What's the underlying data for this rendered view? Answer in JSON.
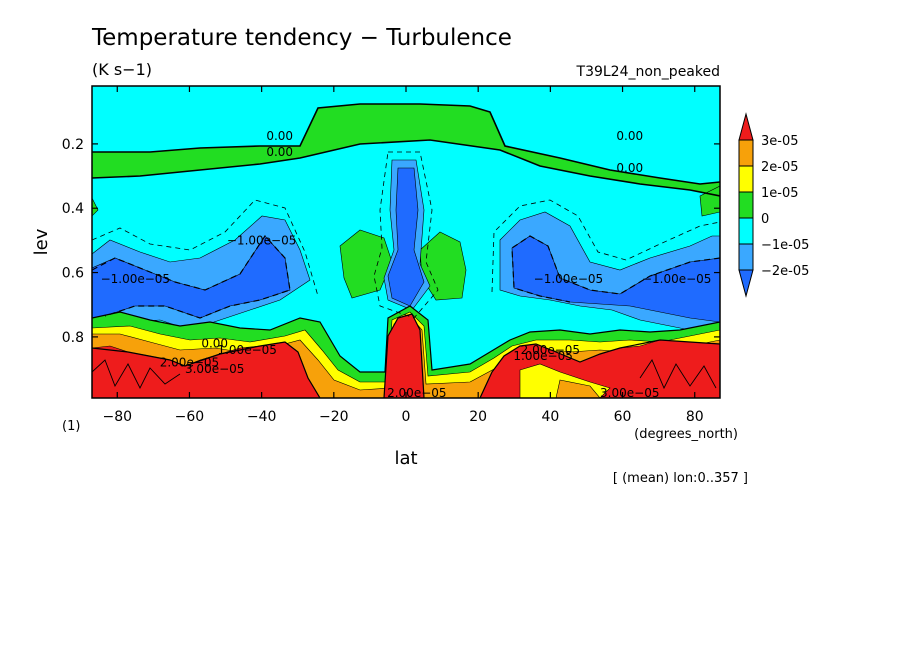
{
  "title": "Temperature tendency − Turbulence",
  "units": "(K s−1)",
  "run_name": "T39L24_non_peaked",
  "footnote_index": "(1)",
  "mean_note": "[ (mean) lon:0..357 ]",
  "colors": {
    "red": "#ee1c1c",
    "orange": "#f7a10a",
    "yellow": "#ffff00",
    "green": "#22dd22",
    "cyan": "#00ffff",
    "light_blue": "#3aa8ff",
    "blue": "#1f6bff"
  },
  "chart_data": {
    "type": "heatmap",
    "subtype": "filled contour",
    "x": {
      "label": "lat",
      "units": "(degrees_north)",
      "range": [
        -87,
        87
      ],
      "ticks": [
        -80,
        -60,
        -40,
        -20,
        0,
        20,
        40,
        60,
        80
      ]
    },
    "y": {
      "label": "lev",
      "range": [
        0.02,
        0.99
      ],
      "inverted": true,
      "ticks": [
        0.2,
        0.4,
        0.6,
        0.8
      ]
    },
    "colorbar": {
      "levels": [
        "3e-05",
        "2e-05",
        "1e-05",
        "0",
        "−1e-05",
        "−2e-05"
      ],
      "colors": [
        "#ee1c1c",
        "#f7a10a",
        "#ffff00",
        "#22dd22",
        "#00ffff",
        "#3aa8ff",
        "#1f6bff"
      ],
      "extend": "both"
    },
    "contour_labels": [
      {
        "text": "0.00",
        "lat": -35,
        "lev": 0.175
      },
      {
        "text": "0.00",
        "lat": -35,
        "lev": 0.225
      },
      {
        "text": "0.00",
        "lat": 62,
        "lev": 0.175
      },
      {
        "text": "0.00",
        "lat": 62,
        "lev": 0.275
      },
      {
        "text": "−1.00e−05",
        "lat": -40,
        "lev": 0.5
      },
      {
        "text": "−1.00e−05",
        "lat": -75,
        "lev": 0.62
      },
      {
        "text": "−1.00e−05",
        "lat": 45,
        "lev": 0.62
      },
      {
        "text": "−1.00e−05",
        "lat": 75,
        "lev": 0.62
      },
      {
        "text": "0.00",
        "lat": -53,
        "lev": 0.82
      },
      {
        "text": "1.00e−05",
        "lat": -44,
        "lev": 0.84
      },
      {
        "text": "2.00e−05",
        "lat": -60,
        "lev": 0.88
      },
      {
        "text": "3.00e−05",
        "lat": -53,
        "lev": 0.9
      },
      {
        "text": "1.00e−05",
        "lat": 38,
        "lev": 0.86
      },
      {
        "text": "2.00e−05",
        "lat": 40,
        "lev": 0.84
      },
      {
        "text": "3.00e−05",
        "lat": 62,
        "lev": 0.975
      },
      {
        "text": "2.00e−05",
        "lat": 3,
        "lev": 0.975
      }
    ]
  }
}
